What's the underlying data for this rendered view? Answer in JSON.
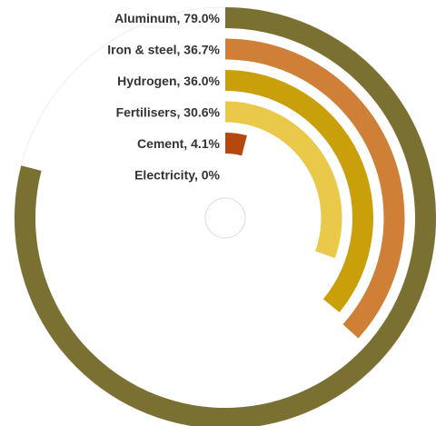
{
  "chart_data": {
    "type": "radial-bar",
    "value_labels": [
      "Aluminum, 79.0%",
      "Iron & steel, 36.7%",
      "Hydrogen, 36.0%",
      "Fertilisers, 30.6%",
      "Cement, 4.1%",
      "Electricity, 0%"
    ],
    "values": [
      79.0,
      36.7,
      36.0,
      30.6,
      4.1,
      0
    ],
    "colors": [
      "#7a7032",
      "#cf8036",
      "#c9a00a",
      "#e9c84a",
      "#b5480f",
      "#999999"
    ],
    "ylim": [
      0,
      100
    ]
  }
}
